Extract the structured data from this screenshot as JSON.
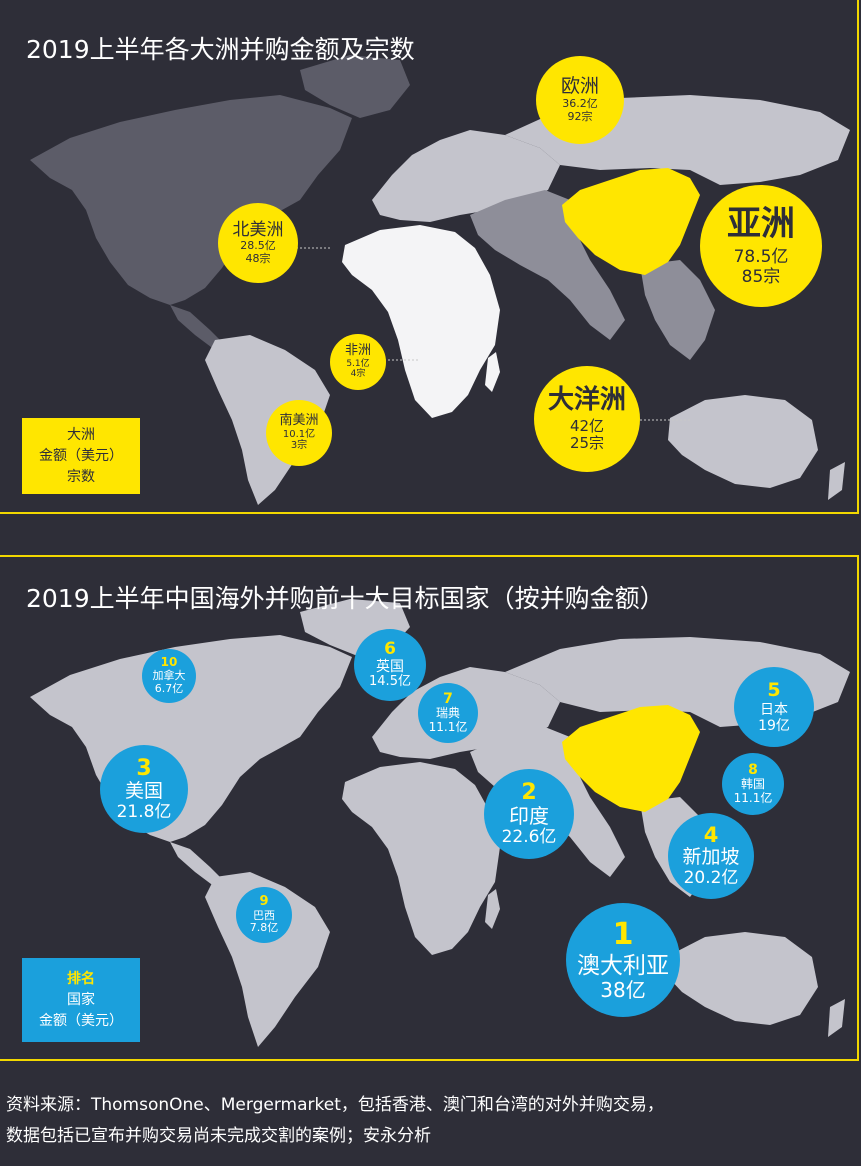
{
  "panel1": {
    "title": "2019上半年各大洲并购金额及宗数",
    "continents": [
      {
        "name": "欧洲",
        "amount": "36.2亿",
        "deals": "92宗"
      },
      {
        "name": "北美洲",
        "amount": "28.5亿",
        "deals": "48宗"
      },
      {
        "name": "亚洲",
        "amount": "78.5亿",
        "deals": "85宗"
      },
      {
        "name": "非洲",
        "amount": "5.1亿",
        "deals": "4宗"
      },
      {
        "name": "大洋洲",
        "amount": "42亿",
        "deals": "25宗"
      },
      {
        "name": "南美洲",
        "amount": "10.1亿",
        "deals": "3宗"
      }
    ],
    "legend": {
      "line1": "大洲",
      "line2": "金额（美元）",
      "line3": "宗数"
    }
  },
  "panel2": {
    "title": "2019上半年中国海外并购前十大目标国家（按并购金额）",
    "countries": [
      {
        "rank": "1",
        "name": "澳大利亚",
        "amount": "38亿"
      },
      {
        "rank": "2",
        "name": "印度",
        "amount": "22.6亿"
      },
      {
        "rank": "3",
        "name": "美国",
        "amount": "21.8亿"
      },
      {
        "rank": "4",
        "name": "新加坡",
        "amount": "20.2亿"
      },
      {
        "rank": "5",
        "name": "日本",
        "amount": "19亿"
      },
      {
        "rank": "6",
        "name": "英国",
        "amount": "14.5亿"
      },
      {
        "rank": "7",
        "name": "瑞典",
        "amount": "11.1亿"
      },
      {
        "rank": "8",
        "name": "韩国",
        "amount": "11.1亿"
      },
      {
        "rank": "9",
        "name": "巴西",
        "amount": "7.8亿"
      },
      {
        "rank": "10",
        "name": "加拿大",
        "amount": "6.7亿"
      }
    ],
    "legend": {
      "line1": "排名",
      "line2": "国家",
      "line3": "金额（美元）"
    }
  },
  "source": {
    "line1": "资料来源：ThomsonOne、Mergermarket，包括香港、澳门和台湾的对外并购交易，",
    "line2": "数据包括已宣布并购交易尚未完成交割的案例；安永分析"
  },
  "colors": {
    "background": "#2e2e38",
    "accent_yellow": "#ffe600",
    "accent_blue": "#1ba0dc",
    "land_light": "#c4c4cc",
    "land_mid": "#8e8e99",
    "land_dark": "#5c5c68",
    "africa": "#f4f4f6"
  }
}
